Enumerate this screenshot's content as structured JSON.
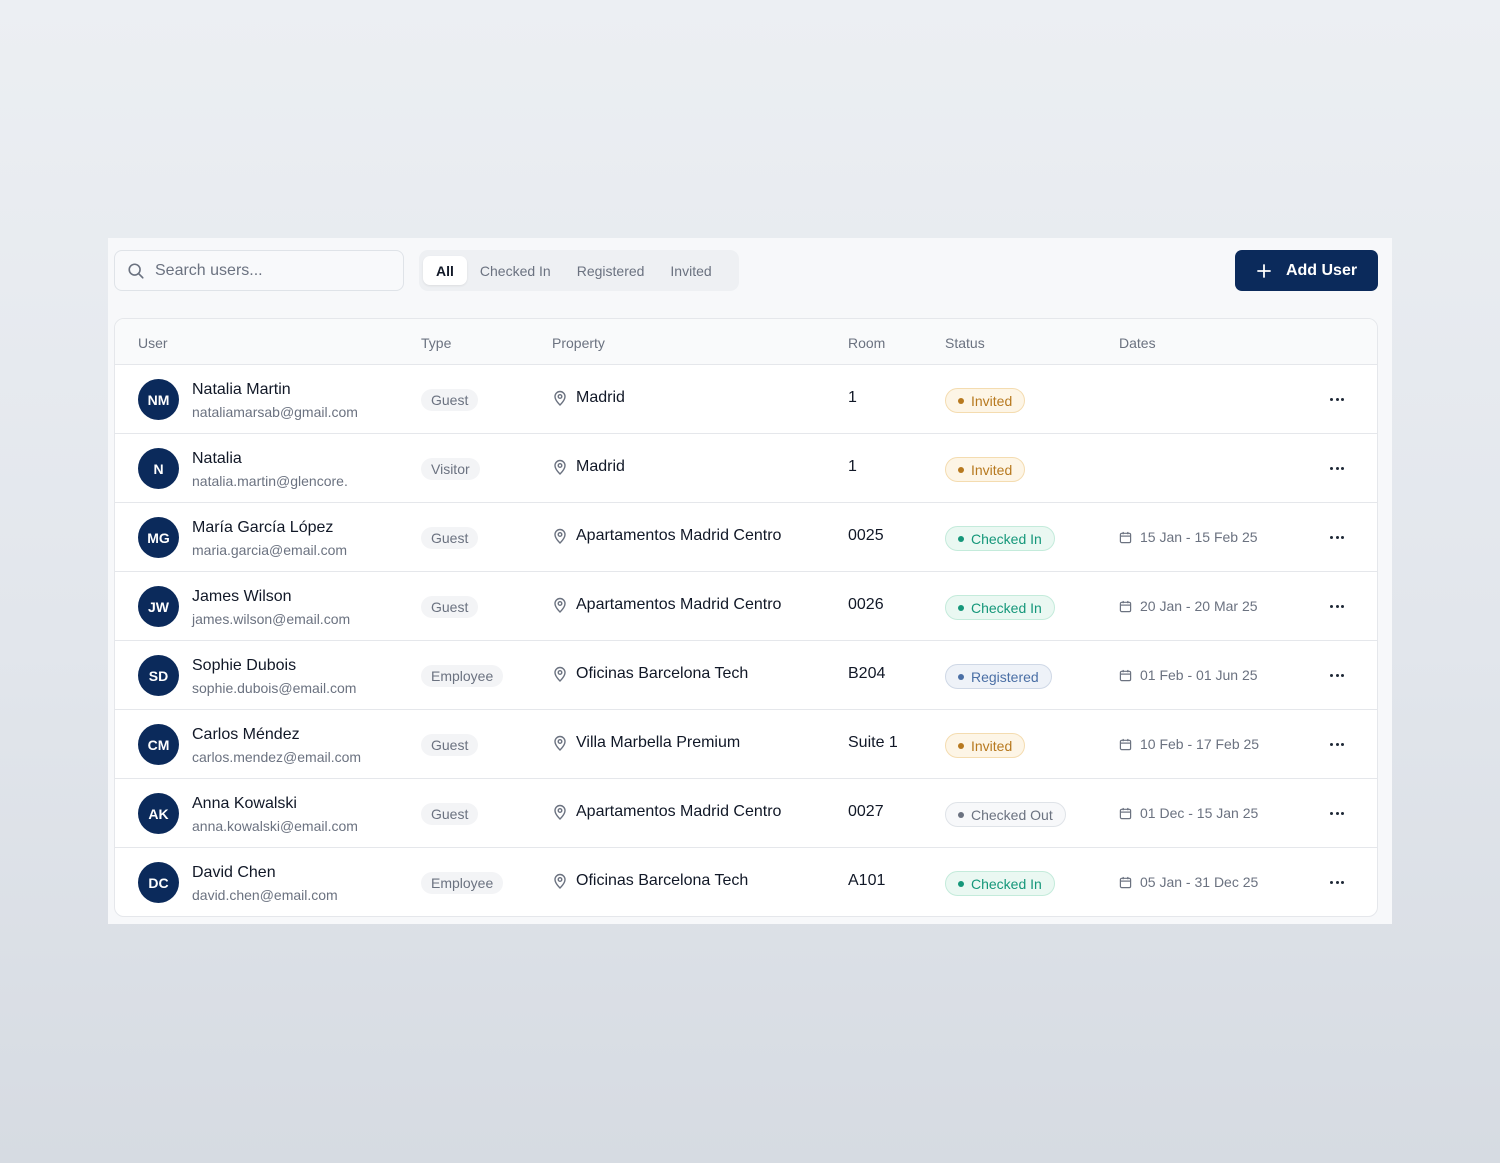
{
  "search": {
    "placeholder": "Search users..."
  },
  "filter_tabs": [
    {
      "label": "All",
      "active": true
    },
    {
      "label": "Checked In",
      "active": false
    },
    {
      "label": "Registered",
      "active": false
    },
    {
      "label": "Invited",
      "active": false
    }
  ],
  "add_user_button": {
    "label": "Add User",
    "icon": "plus-icon"
  },
  "table": {
    "columns": [
      "User",
      "Type",
      "Property",
      "Room",
      "Status",
      "Dates"
    ],
    "rows": [
      {
        "initials": "NM",
        "name": "Natalia Martin",
        "email": "nataliamarsab@gmail.com",
        "type": "Guest",
        "property": "Madrid",
        "room": "1",
        "status": "Invited",
        "dates": ""
      },
      {
        "initials": "N",
        "name": "Natalia",
        "email": "natalia.martin@glencore.",
        "type": "Visitor",
        "property": "Madrid",
        "room": "1",
        "status": "Invited",
        "dates": ""
      },
      {
        "initials": "MG",
        "name": "María García López",
        "email": "maria.garcia@email.com",
        "type": "Guest",
        "property": "Apartamentos Madrid Centro",
        "room": "0025",
        "status": "Checked In",
        "dates": "15 Jan - 15 Feb 25"
      },
      {
        "initials": "JW",
        "name": "James Wilson",
        "email": "james.wilson@email.com",
        "type": "Guest",
        "property": "Apartamentos Madrid Centro",
        "room": "0026",
        "status": "Checked In",
        "dates": "20 Jan - 20 Mar 25"
      },
      {
        "initials": "SD",
        "name": "Sophie Dubois",
        "email": "sophie.dubois@email.com",
        "type": "Employee",
        "property": "Oficinas Barcelona Tech",
        "room": "B204",
        "status": "Registered",
        "dates": "01 Feb - 01 Jun 25"
      },
      {
        "initials": "CM",
        "name": "Carlos Méndez",
        "email": "carlos.mendez@email.com",
        "type": "Guest",
        "property": "Villa Marbella Premium",
        "room": "Suite 1",
        "status": "Invited",
        "dates": "10 Feb - 17 Feb 25"
      },
      {
        "initials": "AK",
        "name": "Anna Kowalski",
        "email": "anna.kowalski@email.com",
        "type": "Guest",
        "property": "Apartamentos Madrid Centro",
        "room": "0027",
        "status": "Checked Out",
        "dates": "01 Dec - 15 Jan 25"
      },
      {
        "initials": "DC",
        "name": "David Chen",
        "email": "david.chen@email.com",
        "type": "Employee",
        "property": "Oficinas Barcelona Tech",
        "room": "A101",
        "status": "Checked In",
        "dates": "05 Jan - 31 Dec 25"
      }
    ]
  },
  "colors": {
    "brand": "#0b2a5b",
    "status_invited": "#b7791f",
    "status_checked_in": "#15977a",
    "status_registered": "#4a6fa5",
    "status_checked_out": "#6b7280"
  }
}
